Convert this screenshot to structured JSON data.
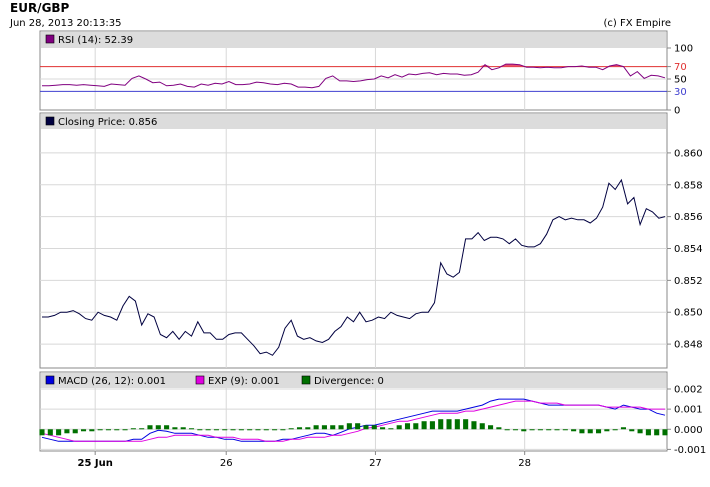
{
  "header": {
    "title": "EUR/GBP",
    "timestamp": "Jun 28, 2013 20:13:35",
    "copyright": "(c) FX Empire"
  },
  "chart_data": [
    {
      "type": "line",
      "panel": "rsi",
      "legend": [
        {
          "label": "RSI (14): 52.39",
          "color": "#800080"
        }
      ],
      "ylim": [
        0,
        100
      ],
      "ticks": [
        {
          "v": 0,
          "label": "0"
        },
        {
          "v": 30,
          "label": "30"
        },
        {
          "v": 50,
          "label": "50"
        },
        {
          "v": 70,
          "label": "70"
        },
        {
          "v": 100,
          "label": "100"
        }
      ],
      "overbought": 70,
      "oversold": 30,
      "overbought_color": "#e03030",
      "oversold_color": "#4040d0",
      "fill_color": "#e8506a",
      "series": [
        {
          "color": "#800080",
          "values": [
            39,
            39,
            40,
            41,
            41,
            40,
            41,
            40,
            39,
            38,
            42,
            41,
            40,
            51,
            55,
            50,
            44,
            45,
            39,
            40,
            42,
            38,
            37,
            42,
            40,
            43,
            42,
            46,
            41,
            41,
            42,
            45,
            44,
            42,
            41,
            43,
            42,
            37,
            37,
            36,
            38,
            51,
            55,
            47,
            47,
            46,
            47,
            49,
            50,
            55,
            52,
            57,
            53,
            58,
            57,
            59,
            60,
            57,
            59,
            58,
            58,
            56,
            57,
            61,
            73,
            65,
            68,
            74,
            74,
            73,
            69,
            69,
            68,
            69,
            68,
            68,
            70,
            70,
            71,
            69,
            69,
            65,
            71,
            73,
            70,
            55,
            62,
            51,
            56,
            55,
            52
          ]
        }
      ]
    },
    {
      "type": "line",
      "panel": "price",
      "legend": [
        {
          "label": "Closing Price: 0.856",
          "color": "#000040"
        }
      ],
      "ylim": [
        0.8465,
        0.8615
      ],
      "ticks": [
        {
          "v": 0.848,
          "label": "0.848"
        },
        {
          "v": 0.85,
          "label": "0.850"
        },
        {
          "v": 0.852,
          "label": "0.852"
        },
        {
          "v": 0.854,
          "label": "0.854"
        },
        {
          "v": 0.856,
          "label": "0.856"
        },
        {
          "v": 0.858,
          "label": "0.858"
        },
        {
          "v": 0.86,
          "label": "0.860"
        }
      ],
      "series": [
        {
          "color": "#000040",
          "values": [
            0.8497,
            0.8497,
            0.8498,
            0.85,
            0.85,
            0.8501,
            0.8499,
            0.8496,
            0.8495,
            0.85,
            0.8498,
            0.8497,
            0.8495,
            0.8504,
            0.851,
            0.8507,
            0.8492,
            0.8499,
            0.8497,
            0.8486,
            0.8484,
            0.8488,
            0.8483,
            0.8488,
            0.8485,
            0.8494,
            0.8487,
            0.8487,
            0.8483,
            0.8483,
            0.8486,
            0.8487,
            0.8487,
            0.8483,
            0.8479,
            0.8474,
            0.8475,
            0.8473,
            0.8478,
            0.849,
            0.8495,
            0.8485,
            0.8483,
            0.8484,
            0.8482,
            0.8481,
            0.8483,
            0.8488,
            0.8491,
            0.8497,
            0.8494,
            0.85,
            0.8494,
            0.8495,
            0.8497,
            0.8496,
            0.85,
            0.8498,
            0.8497,
            0.8496,
            0.8499,
            0.85,
            0.85,
            0.8506,
            0.8531,
            0.8524,
            0.8522,
            0.8525,
            0.8546,
            0.8546,
            0.855,
            0.8545,
            0.8547,
            0.8547,
            0.8546,
            0.8543,
            0.8546,
            0.8542,
            0.8541,
            0.8541,
            0.8543,
            0.8549,
            0.8558,
            0.856,
            0.8558,
            0.8559,
            0.8558,
            0.8558,
            0.8556,
            0.8559,
            0.8566,
            0.8581,
            0.8577,
            0.8583,
            0.8568,
            0.8572,
            0.8555,
            0.8565,
            0.8563,
            0.8559,
            0.856
          ]
        }
      ]
    },
    {
      "type": "line",
      "panel": "macd",
      "legend": [
        {
          "label": "MACD (26, 12): 0.001",
          "color": "#0000e0"
        },
        {
          "label": "EXP (9): 0.001",
          "color": "#e000e0"
        },
        {
          "label": "Divergence: 0",
          "color": "#007000"
        }
      ],
      "ylim": [
        -0.00108,
        0.00205
      ],
      "ticks": [
        {
          "v": -0.001,
          "label": "-0.001"
        },
        {
          "v": 0,
          "label": "0.000"
        },
        {
          "v": 0.001,
          "label": "0.001"
        },
        {
          "v": 0.002,
          "label": "0.002"
        }
      ],
      "series": [
        {
          "name": "MACD",
          "color": "#0000e0",
          "values": [
            -0.0004,
            -0.0005,
            -0.0006,
            -0.0006,
            -0.0006,
            -0.0006,
            -0.0006,
            -0.0006,
            -0.0006,
            -0.0006,
            -0.0006,
            -0.0005,
            -0.0005,
            -0.0002,
            -5e-05,
            -0.0001,
            -0.0002,
            -0.0002,
            -0.0002,
            -0.0003,
            -0.0004,
            -0.0004,
            -0.0005,
            -0.0005,
            -0.0006,
            -0.0006,
            -0.0006,
            -0.0006,
            -0.0006,
            -0.0005,
            -0.0005,
            -0.0004,
            -0.0003,
            -0.0002,
            -0.0002,
            -0.0003,
            -0.00015,
            2e-05,
            0.0001,
            0.0002,
            0.0002,
            0.0003,
            0.0004,
            0.0005,
            0.0006,
            0.0007,
            0.0008,
            0.0009,
            0.0009,
            0.0009,
            0.0009,
            0.001,
            0.0011,
            0.0012,
            0.0014,
            0.0015,
            0.0015,
            0.0015,
            0.0015,
            0.0014,
            0.0013,
            0.0012,
            0.0012,
            0.0012,
            0.0012,
            0.0012,
            0.0012,
            0.0012,
            0.0011,
            0.001,
            0.0012,
            0.0011,
            0.001,
            0.001,
            0.0008,
            0.0007
          ]
        },
        {
          "name": "EXP",
          "color": "#e000e0",
          "values": [
            -0.0002,
            -0.0003,
            -0.0004,
            -0.0005,
            -0.0006,
            -0.0006,
            -0.0006,
            -0.0006,
            -0.0006,
            -0.0006,
            -0.0006,
            -0.0006,
            -0.0006,
            -0.0005,
            -0.0004,
            -0.0004,
            -0.0003,
            -0.0003,
            -0.0003,
            -0.0003,
            -0.0003,
            -0.0004,
            -0.0004,
            -0.0004,
            -0.0005,
            -0.0005,
            -0.0005,
            -0.0006,
            -0.0006,
            -0.0006,
            -0.0005,
            -0.0005,
            -0.0004,
            -0.0004,
            -0.0004,
            -0.0003,
            -0.0003,
            -0.0002,
            -0.0001,
            5e-05,
            0.0001,
            0.0002,
            0.0003,
            0.0004,
            0.0004,
            0.0005,
            0.0006,
            0.0007,
            0.0008,
            0.0008,
            0.0008,
            0.0009,
            0.0009,
            0.001,
            0.0011,
            0.0012,
            0.0013,
            0.0014,
            0.0014,
            0.0014,
            0.0013,
            0.0013,
            0.0013,
            0.0012,
            0.0012,
            0.0012,
            0.0012,
            0.0012,
            0.0011,
            0.0011,
            0.0011,
            0.0011,
            0.0011,
            0.001,
            0.001,
            0.001
          ]
        },
        {
          "name": "Divergence",
          "color": "#007000",
          "values": [
            -0.0003,
            -0.0003,
            -0.0003,
            -0.0002,
            -0.0002,
            -0.0001,
            -0.0001,
            -5e-05,
            -5e-05,
            -5e-05,
            0,
            5e-05,
            5e-05,
            0.0002,
            0.0002,
            0.0002,
            0.0001,
            0.0001,
            5e-05,
            0,
            0,
            -5e-05,
            -5e-05,
            -5e-05,
            -5e-05,
            -5e-05,
            -5e-05,
            -5e-05,
            -5e-05,
            0,
            5e-05,
            0.0001,
            0.0001,
            0.0002,
            0.0002,
            0.0002,
            0.0002,
            0.0003,
            0.0003,
            0.0002,
            0.0002,
            0.0001,
            5e-05,
            0.0002,
            0.0003,
            0.0003,
            0.0004,
            0.0004,
            0.0005,
            0.0005,
            0.0005,
            0.0005,
            0.0004,
            0.0003,
            0.0002,
            0.0001,
            0,
            0,
            -0.0001,
            -5e-05,
            0,
            0,
            -5e-05,
            0,
            -0.0001,
            -0.0002,
            -0.0002,
            -0.0002,
            -0.0001,
            0,
            0.0001,
            -0.0001,
            -0.0002,
            -0.0003,
            -0.0003,
            -0.0003
          ]
        }
      ]
    }
  ],
  "x_axis": {
    "labels": [
      {
        "label": "25 Jun",
        "pos": 0.088,
        "bold": true
      },
      {
        "label": "26",
        "pos": 0.297,
        "bold": false
      },
      {
        "label": "27",
        "pos": 0.535,
        "bold": false
      },
      {
        "label": "28",
        "pos": 0.773,
        "bold": false
      }
    ]
  }
}
